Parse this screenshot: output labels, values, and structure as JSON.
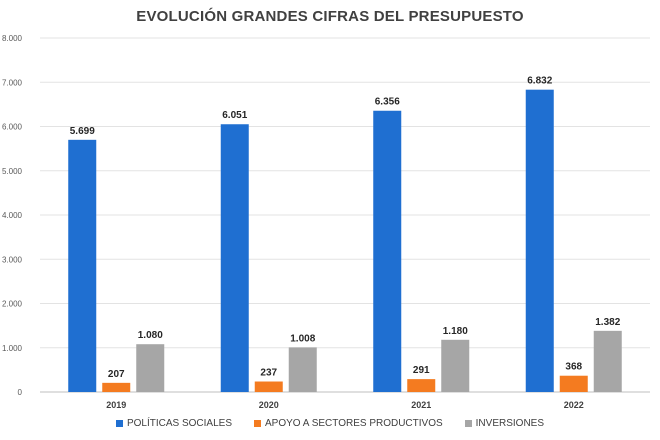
{
  "chart_data": {
    "type": "bar",
    "title": "EVOLUCIÓN GRANDES CIFRAS DEL PRESUPUESTO",
    "categories": [
      "2019",
      "2020",
      "2021",
      "2022"
    ],
    "series": [
      {
        "name": "POLÍTICAS SOCIALES",
        "color": "#1f6fd1",
        "values": [
          5699,
          6051,
          6356,
          6832
        ],
        "labels": [
          "5.699",
          "6.051",
          "6.356",
          "6.832"
        ]
      },
      {
        "name": "APOYO A SECTORES PRODUCTIVOS",
        "color": "#f47b20",
        "values": [
          207,
          237,
          291,
          368
        ],
        "labels": [
          "207",
          "237",
          "291",
          "368"
        ]
      },
      {
        "name": "INVERSIONES",
        "color": "#a6a6a6",
        "values": [
          1080,
          1008,
          1180,
          1382
        ],
        "labels": [
          "1.080",
          "1.008",
          "1.180",
          "1.382"
        ]
      }
    ],
    "ylim": [
      0,
      8000
    ],
    "yticks": [
      0,
      1000,
      2000,
      3000,
      4000,
      5000,
      6000,
      7000,
      8000
    ],
    "yticklabels": [
      "0",
      "1.000",
      "2.000",
      "3.000",
      "4.000",
      "5.000",
      "6.000",
      "7.000",
      "8.000"
    ],
    "grid": true,
    "legend": "bottom"
  }
}
